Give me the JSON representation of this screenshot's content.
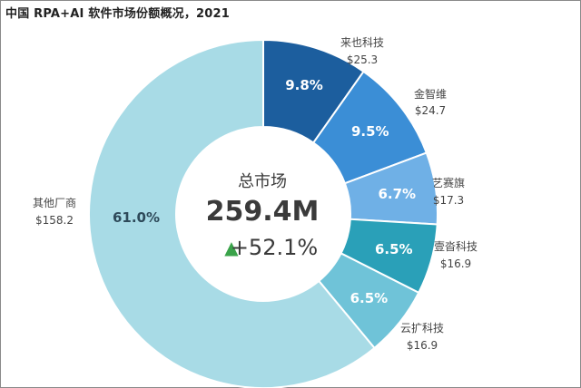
{
  "chart_data": {
    "type": "pie",
    "title": "中国 RPA+AI 软件市场份额概况，2021",
    "center": {
      "label": "总市场",
      "total": "259.4M",
      "growth_arrow": "▲",
      "growth": "+52.1%"
    },
    "slices": [
      {
        "name": "来也科技",
        "value_label": "$25.3",
        "value": 25.3,
        "pct_label": "9.8%",
        "color": "#1c5e9e"
      },
      {
        "name": "金智维",
        "value_label": "$24.7",
        "value": 24.7,
        "pct_label": "9.5%",
        "color": "#3b8ed6"
      },
      {
        "name": "艺赛旗",
        "value_label": "$17.3",
        "value": 17.3,
        "pct_label": "6.7%",
        "color": "#6fb0e6"
      },
      {
        "name": "壹沓科技",
        "value_label": "$16.9",
        "value": 16.9,
        "pct_label": "6.5%",
        "color": "#2aa0b8"
      },
      {
        "name": "云扩科技",
        "value_label": "$16.9",
        "value": 16.9,
        "pct_label": "6.5%",
        "color": "#6fc3d8"
      },
      {
        "name": "其他厂商",
        "value_label": "$158.2",
        "value": 158.2,
        "pct_label": "61.0%",
        "color": "#a8dbe6"
      }
    ],
    "colors": {
      "arrow": "#3aa34a"
    }
  }
}
